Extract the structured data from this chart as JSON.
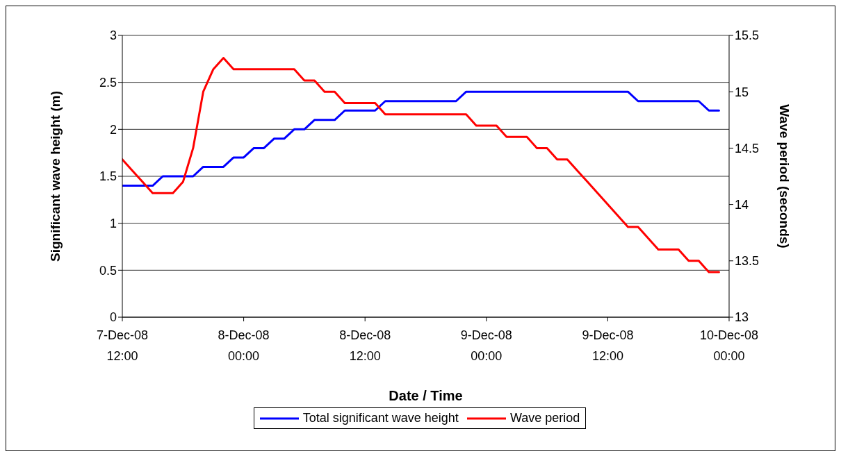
{
  "chart_data": {
    "type": "line",
    "xlabel": "Date / Time",
    "ylabel": "Significant wave height (m)",
    "y2label": "Wave period (seconds)",
    "x": [
      "--12-07T12:00",
      "--12-07T13:00",
      "--12-07T14:00",
      "--12-07T15:00",
      "--12-07T16:00",
      "--12-07T17:00",
      "--12-07T18:00",
      "--12-07T19:00",
      "--12-07T20:00",
      "--12-07T21:00",
      "--12-07T22:00",
      "--12-07T23:00",
      "--12-08T00:00",
      "--12-08T01:00",
      "--12-08T02:00",
      "--12-08T03:00",
      "--12-08T04:00",
      "--12-08T05:00",
      "--12-08T06:00",
      "--12-08T07:00",
      "--12-08T08:00",
      "--12-08T09:00",
      "--12-08T10:00",
      "--12-08T11:00",
      "--12-08T12:00",
      "--12-08T13:00",
      "--12-08T14:00",
      "--12-08T15:00",
      "--12-08T16:00",
      "--12-08T17:00",
      "--12-08T18:00",
      "--12-08T19:00",
      "--12-08T20:00",
      "--12-08T21:00",
      "--12-08T22:00",
      "--12-08T23:00",
      "--12-09T00:00",
      "--12-09T01:00",
      "--12-09T02:00",
      "--12-09T03:00",
      "--12-09T04:00",
      "--12-09T05:00",
      "--12-09T06:00",
      "--12-09T07:00",
      "--12-09T08:00",
      "--12-09T09:00",
      "--12-09T10:00",
      "--12-09T11:00",
      "--12-09T12:00",
      "--12-09T13:00",
      "--12-09T14:00",
      "--12-09T15:00",
      "--12-09T16:00",
      "--12-09T17:00",
      "--12-09T18:00",
      "--12-09T19:00",
      "--12-09T20:00",
      "--12-09T21:00",
      "--12-09T22:00",
      "--12-09T23:00"
    ],
    "series": [
      {
        "name": "Total significant wave height",
        "color": "#0000ff",
        "values": [
          1.4,
          1.4,
          1.4,
          1.4,
          1.5,
          1.5,
          1.5,
          1.5,
          1.6,
          1.6,
          1.6,
          1.7,
          1.7,
          1.8,
          1.8,
          1.9,
          1.9,
          2.0,
          2.0,
          2.1,
          2.1,
          2.1,
          2.2,
          2.2,
          2.2,
          2.2,
          2.3,
          2.3,
          2.3,
          2.3,
          2.3,
          2.3,
          2.3,
          2.3,
          2.4,
          2.4,
          2.4,
          2.4,
          2.4,
          2.4,
          2.4,
          2.4,
          2.4,
          2.4,
          2.4,
          2.4,
          2.4,
          2.4,
          2.4,
          2.4,
          2.4,
          2.3,
          2.3,
          2.3,
          2.3,
          2.3,
          2.3,
          2.3,
          2.2,
          2.2
        ]
      },
      {
        "name": "Wave period",
        "color": "#ff0000",
        "axis": "y2",
        "values": [
          14.4,
          14.3,
          14.2,
          14.1,
          14.1,
          14.1,
          14.2,
          14.5,
          15.0,
          15.2,
          15.3,
          15.2,
          15.2,
          15.2,
          15.2,
          15.2,
          15.2,
          15.2,
          15.1,
          15.1,
          15.0,
          15.0,
          14.9,
          14.9,
          14.9,
          14.9,
          14.8,
          14.8,
          14.8,
          14.8,
          14.8,
          14.8,
          14.8,
          14.8,
          14.8,
          14.7,
          14.7,
          14.7,
          14.6,
          14.6,
          14.6,
          14.5,
          14.5,
          14.4,
          14.4,
          14.3,
          14.2,
          14.1,
          14.0,
          13.9,
          13.8,
          13.8,
          13.7,
          13.6,
          13.6,
          13.6,
          13.5,
          13.5,
          13.4,
          13.4
        ]
      }
    ],
    "xlim": [
      "--12-07T12:00",
      "--12-10T00:00"
    ],
    "xticks": [
      {
        "value": "--12-07T12:00",
        "label": "7-Dec-08 12:00"
      },
      {
        "value": "--12-08T00:00",
        "label": "8-Dec-08 00:00"
      },
      {
        "value": "--12-08T12:00",
        "label": "8-Dec-08 12:00"
      },
      {
        "value": "--12-09T00:00",
        "label": "9-Dec-08 00:00"
      },
      {
        "value": "--12-09T12:00",
        "label": "9-Dec-08 12:00"
      },
      {
        "value": "--12-10T00:00",
        "label": "10-Dec-08 00:00"
      }
    ],
    "ylim": [
      0,
      3
    ],
    "yticks": [
      0,
      0.5,
      1,
      1.5,
      2,
      2.5,
      3
    ],
    "y2lim": [
      13,
      15.5
    ],
    "y2ticks": [
      13,
      13.5,
      14,
      14.5,
      15,
      15.5
    ],
    "grid": "y",
    "legend": "bottom"
  }
}
